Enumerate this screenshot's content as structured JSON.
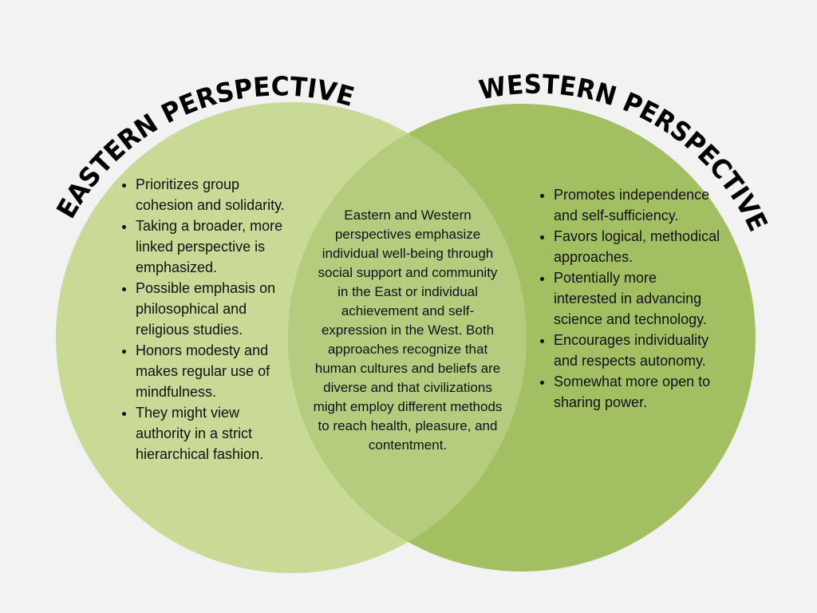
{
  "diagram": {
    "colors": {
      "background": "#f1f2f1",
      "eastern_circle": "#c8da96",
      "western_circle": "#a2bf62",
      "overlap": "#b5cb7e"
    },
    "eastern": {
      "title": "EASTERN PERSPECTIVE",
      "items": [
        "Prioritizes group cohesion and solidarity.",
        "Taking a broader, more linked perspective is emphasized.",
        "Possible emphasis on philosophical and religious studies.",
        "Honors modesty and makes regular use of mindfulness.",
        "They might view authority in a strict hierarchical fashion."
      ]
    },
    "western": {
      "title": "WESTERN PERSPECTIVE",
      "items": [
        "Promotes independence and self-sufficiency.",
        "Favors logical, methodical approaches.",
        "Potentially more interested in advancing science and technology.",
        "Encourages individuality and respects autonomy.",
        "Somewhat more open to sharing power."
      ]
    },
    "overlap": {
      "text": "Eastern and Western perspectives emphasize individual well-being through social support and community in the East or individual achievement and self-expression in the West. Both approaches recognize that human cultures and beliefs are diverse and that civilizations might employ different methods to reach health, pleasure, and contentment."
    }
  }
}
